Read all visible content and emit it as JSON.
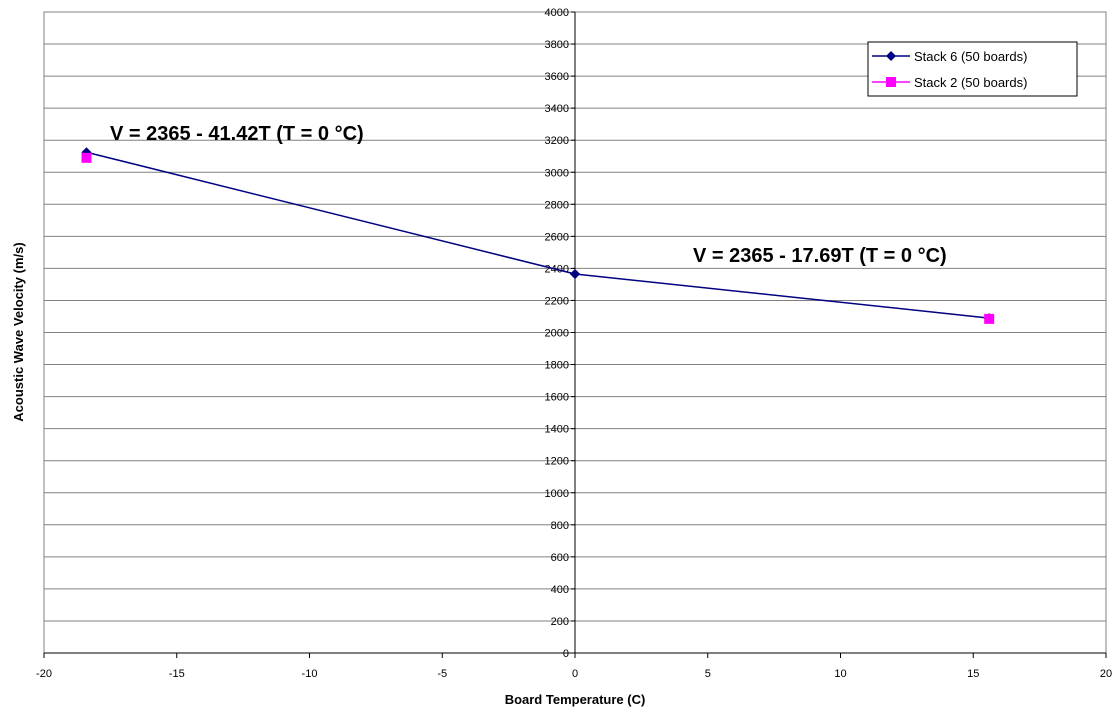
{
  "chart_data": {
    "type": "line",
    "xlabel": "Board Temperature (C)",
    "ylabel": "Acoustic Wave Velocity (m/s)",
    "xlim": [
      -20,
      20
    ],
    "ylim": [
      0,
      4000
    ],
    "x_ticks": [
      -20,
      -15,
      -10,
      -5,
      0,
      5,
      10,
      15,
      20
    ],
    "y_ticks": [
      0,
      200,
      400,
      600,
      800,
      1000,
      1200,
      1400,
      1600,
      1800,
      2000,
      2200,
      2400,
      2600,
      2800,
      3000,
      3200,
      3400,
      3600,
      3800,
      4000
    ],
    "grid": "horizontal",
    "legend_position": "top-right",
    "series": [
      {
        "name": "Stack 6 (50 boards)",
        "color": "#000080",
        "marker": "diamond",
        "line": true,
        "points": [
          [
            -18.4,
            3125
          ],
          [
            0,
            2365
          ]
        ]
      },
      {
        "name": "Stack 6 (50 boards)",
        "color": "#000080",
        "marker": "diamond",
        "line": true,
        "legend": false,
        "points": [
          [
            0,
            2365
          ],
          [
            15.6,
            2090
          ]
        ]
      },
      {
        "name": "Stack 2 (50 boards)",
        "color": "#ff00ff",
        "marker": "square",
        "line": false,
        "points": [
          [
            -18.4,
            3090
          ],
          [
            15.6,
            2085
          ]
        ]
      }
    ],
    "annotations": [
      {
        "text": "V = 2365 - 41.42T  (T = 0 °C)"
      },
      {
        "text": "V = 2365 - 17.69T  (T = 0 °C)"
      }
    ]
  }
}
